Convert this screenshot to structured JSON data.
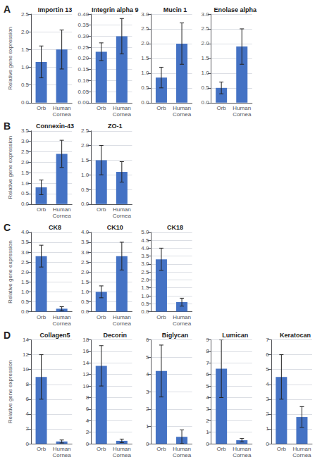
{
  "chart_data": [
    {
      "type": "bar",
      "title": "Importin 13",
      "annotations": [
        "A"
      ],
      "ylabel": "Relative gene expression",
      "categories": [
        "Orb",
        "Human\nCornea"
      ],
      "values": [
        1.15,
        1.5
      ],
      "errors": [
        0.45,
        0.55
      ],
      "color": "#4472C4",
      "ylim": [
        0,
        2.5
      ],
      "yticks": [
        {
          "value": 0,
          "label": "0.0"
        },
        0.5,
        {
          "value": 1.0,
          "label": "1.0"
        },
        1.5,
        {
          "value": 2.0,
          "label": "2.0"
        },
        2.5
      ],
      "grid": true
    },
    {
      "type": "bar",
      "title": "Integrin alpha 9",
      "categories": [
        "Orb",
        "Human\nCornea"
      ],
      "values": [
        0.23,
        0.3
      ],
      "errors": [
        0.04,
        0.08
      ],
      "color": "#4472C4",
      "ylim": [
        0,
        0.4
      ],
      "yticks": [
        {
          "value": 0,
          "label": "0.00"
        },
        0.05,
        {
          "value": 0.1,
          "label": "0.10"
        },
        0.15,
        {
          "value": 0.2,
          "label": "0.20"
        },
        0.25,
        {
          "value": 0.3,
          "label": "0.30"
        },
        0.35,
        {
          "value": 0.4,
          "label": "0.40"
        }
      ],
      "grid": true
    },
    {
      "type": "bar",
      "title": "Mucin 1",
      "categories": [
        "Orb",
        "Human\nCornea"
      ],
      "values": [
        0.85,
        2.0
      ],
      "errors": [
        0.35,
        0.7
      ],
      "color": "#4472C4",
      "ylim": [
        0,
        3.0
      ],
      "yticks": [
        {
          "value": 0,
          "label": "0.0"
        },
        0.5,
        {
          "value": 1.0,
          "label": "1.0"
        },
        1.5,
        {
          "value": 2.0,
          "label": "2.0"
        },
        2.5,
        {
          "value": 3.0,
          "label": "3.0"
        }
      ],
      "grid": true
    },
    {
      "type": "bar",
      "title": "Enolase alpha",
      "categories": [
        "Orb",
        "Human\nCornea"
      ],
      "values": [
        0.5,
        1.9
      ],
      "errors": [
        0.2,
        0.6
      ],
      "color": "#4472C4",
      "ylim": [
        0,
        3.0
      ],
      "yticks": [
        {
          "value": 0,
          "label": "0.0"
        },
        0.5,
        {
          "value": 1.0,
          "label": "1.0"
        },
        1.5,
        {
          "value": 2.0,
          "label": "2.0"
        },
        2.5,
        {
          "value": 3.0,
          "label": "3.0"
        }
      ],
      "grid": true
    },
    {
      "type": "bar",
      "title": "Connexin-43",
      "annotations": [
        "B"
      ],
      "ylabel": "Relative gene expression",
      "categories": [
        "Orb",
        "Human\nCornea"
      ],
      "values": [
        0.8,
        2.4
      ],
      "errors": [
        0.35,
        0.65
      ],
      "color": "#4472C4",
      "ylim": [
        0,
        3.5
      ],
      "yticks": [
        {
          "value": 0,
          "label": "0.0"
        },
        0.5,
        {
          "value": 1.0,
          "label": "1.0"
        },
        1.5,
        {
          "value": 2.0,
          "label": "2.0"
        },
        2.5,
        {
          "value": 3.0,
          "label": "3.0"
        },
        3.5
      ],
      "grid": true
    },
    {
      "type": "bar",
      "title": "ZO-1",
      "categories": [
        "Orb",
        "Human\nCornea"
      ],
      "values": [
        1.5,
        1.1
      ],
      "errors": [
        0.5,
        0.35
      ],
      "color": "#4472C4",
      "ylim": [
        0,
        2.5
      ],
      "yticks": [
        {
          "value": 0,
          "label": "0.0"
        },
        0.5,
        {
          "value": 1.0,
          "label": "1.0"
        },
        1.5,
        {
          "value": 2.0,
          "label": "2.0"
        },
        2.5
      ],
      "grid": true
    },
    {
      "type": "bar",
      "title": "CK8",
      "annotations": [
        "C"
      ],
      "ylabel": "Relative gene expression",
      "categories": [
        "Orb",
        "Human\nCornea"
      ],
      "values": [
        2.8,
        0.15
      ],
      "errors": [
        0.55,
        0.1
      ],
      "color": "#4472C4",
      "ylim": [
        0,
        4.0
      ],
      "yticks": [
        {
          "value": 0,
          "label": "0.0"
        },
        0.5,
        {
          "value": 1.0,
          "label": "1.0"
        },
        1.5,
        {
          "value": 2.0,
          "label": "2.0"
        },
        2.5,
        {
          "value": 3.0,
          "label": "3.0"
        },
        3.5,
        {
          "value": 4.0,
          "label": "4.0"
        }
      ],
      "grid": true
    },
    {
      "type": "bar",
      "title": "CK10",
      "categories": [
        "Orb",
        "Human\nCornea"
      ],
      "values": [
        1.0,
        2.8
      ],
      "errors": [
        0.3,
        0.7
      ],
      "color": "#4472C4",
      "ylim": [
        0,
        4.0
      ],
      "yticks": [
        {
          "value": 0,
          "label": "0.0"
        },
        0.5,
        {
          "value": 1.0,
          "label": "1.0"
        },
        1.5,
        {
          "value": 2.0,
          "label": "2.0"
        },
        2.5,
        {
          "value": 3.0,
          "label": "3.0"
        },
        3.5,
        {
          "value": 4.0,
          "label": "4.0"
        }
      ],
      "grid": true
    },
    {
      "type": "bar",
      "title": "CK18",
      "categories": [
        "Orb",
        "Human\nCornea"
      ],
      "values": [
        3.3,
        0.6
      ],
      "errors": [
        0.7,
        0.25
      ],
      "color": "#4472C4",
      "ylim": [
        0,
        5.0
      ],
      "yticks": [
        {
          "value": 0,
          "label": "0.0"
        },
        0.5,
        {
          "value": 1.0,
          "label": "1.0"
        },
        1.5,
        {
          "value": 2.0,
          "label": "2.0"
        },
        2.5,
        {
          "value": 3.0,
          "label": "3.0"
        },
        3.5,
        {
          "value": 4.0,
          "label": "4.0"
        },
        4.5,
        {
          "value": 5.0,
          "label": "5.0"
        }
      ],
      "grid": true
    },
    {
      "type": "bar",
      "title": "Collagen5",
      "annotations": [
        "D"
      ],
      "ylabel": "Relative gene expression",
      "categories": [
        "Orb",
        "Human\nCornea"
      ],
      "values": [
        9.0,
        0.3
      ],
      "errors": [
        3.0,
        0.2
      ],
      "color": "#4472C4",
      "ylim": [
        0,
        14
      ],
      "yticks": [
        0,
        2,
        4,
        6,
        8,
        10,
        12,
        14
      ],
      "grid": true
    },
    {
      "type": "bar",
      "title": "Decorin",
      "categories": [
        "Orb",
        "Human\nCornea"
      ],
      "values": [
        13.5,
        0.5
      ],
      "errors": [
        3.5,
        0.3
      ],
      "color": "#4472C4",
      "ylim": [
        0,
        18
      ],
      "yticks": [
        0,
        2,
        4,
        6,
        8,
        10,
        12,
        14,
        16,
        18
      ],
      "grid": true
    },
    {
      "type": "bar",
      "title": "Biglycan",
      "categories": [
        "Orb",
        "Human\nCornea"
      ],
      "values": [
        4.2,
        0.4
      ],
      "errors": [
        1.5,
        0.4
      ],
      "color": "#4472C4",
      "ylim": [
        0,
        6
      ],
      "yticks": [
        0,
        1,
        2,
        3,
        4,
        5,
        6
      ],
      "grid": true
    },
    {
      "type": "bar",
      "title": "Lumican",
      "categories": [
        "Orb",
        "Human\nCornea"
      ],
      "values": [
        6.5,
        0.3
      ],
      "errors": [
        2.5,
        0.15
      ],
      "color": "#4472C4",
      "ylim": [
        0,
        9
      ],
      "yticks": [
        0,
        1,
        2,
        3,
        4,
        5,
        6,
        7,
        8,
        9
      ],
      "grid": true
    },
    {
      "type": "bar",
      "title": "Keratocan",
      "categories": [
        "Orb",
        "Human\nCornea"
      ],
      "values": [
        4.5,
        1.8
      ],
      "errors": [
        1.5,
        0.7
      ],
      "color": "#4472C4",
      "ylim": [
        0,
        7
      ],
      "yticks": [
        0,
        1,
        2,
        3,
        4,
        5,
        6,
        7
      ],
      "grid": true
    }
  ]
}
